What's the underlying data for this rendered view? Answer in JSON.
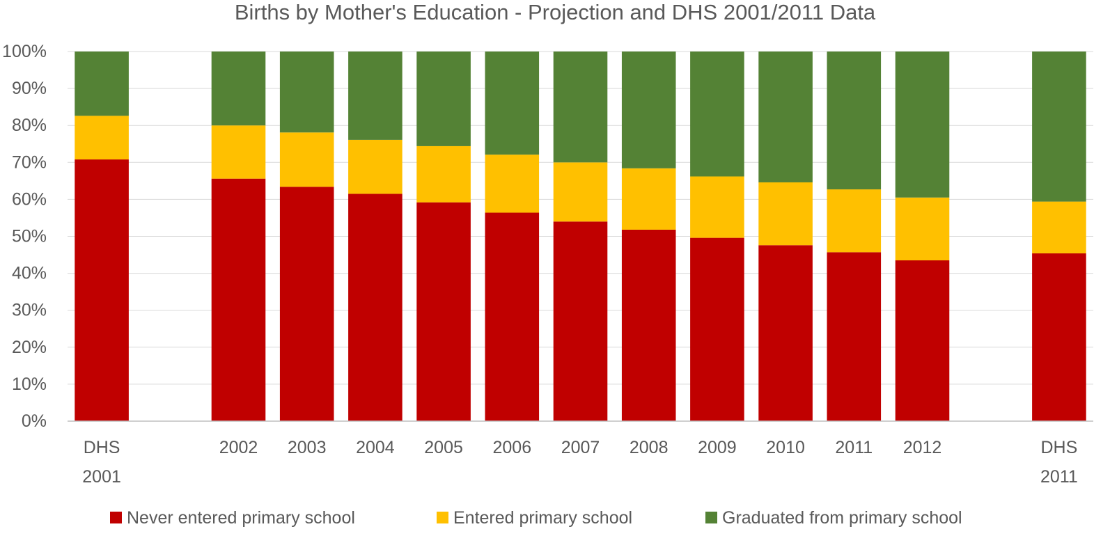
{
  "chart_data": {
    "type": "bar",
    "stacked": true,
    "title": "Births by Mother's Education - Projection and DHS 2001/2011 Data",
    "categories": [
      [
        "DHS",
        "2001"
      ],
      [
        "2002"
      ],
      [
        "2003"
      ],
      [
        "2004"
      ],
      [
        "2005"
      ],
      [
        "2006"
      ],
      [
        "2007"
      ],
      [
        "2008"
      ],
      [
        "2009"
      ],
      [
        "2010"
      ],
      [
        "2011"
      ],
      [
        "2012"
      ],
      [
        "DHS",
        "2011"
      ]
    ],
    "category_gaps_after": [
      0,
      11
    ],
    "series": [
      {
        "name": "Never entered primary school",
        "color": "#c00000",
        "values": [
          70.8,
          65.6,
          63.4,
          61.5,
          59.2,
          56.4,
          54.0,
          51.8,
          49.6,
          47.6,
          45.7,
          43.5,
          45.4
        ]
      },
      {
        "name": "Entered primary school",
        "color": "#ffc000",
        "values": [
          11.8,
          14.4,
          14.7,
          14.6,
          15.2,
          15.7,
          16.0,
          16.6,
          16.6,
          17.0,
          17.0,
          17.0,
          14.0
        ]
      },
      {
        "name": "Graduated from primary school",
        "color": "#548235",
        "values": [
          17.4,
          20.0,
          21.9,
          23.9,
          25.6,
          27.9,
          30.0,
          31.6,
          33.8,
          35.4,
          37.3,
          39.5,
          40.6
        ]
      }
    ],
    "ylim": [
      0,
      100
    ],
    "yticks": [
      "0%",
      "10%",
      "20%",
      "30%",
      "40%",
      "50%",
      "60%",
      "70%",
      "80%",
      "90%",
      "100%"
    ],
    "ytick_values": [
      0,
      10,
      20,
      30,
      40,
      50,
      60,
      70,
      80,
      90,
      100
    ],
    "xlabel": "",
    "ylabel": "",
    "grid": true,
    "legend_position": "bottom"
  }
}
